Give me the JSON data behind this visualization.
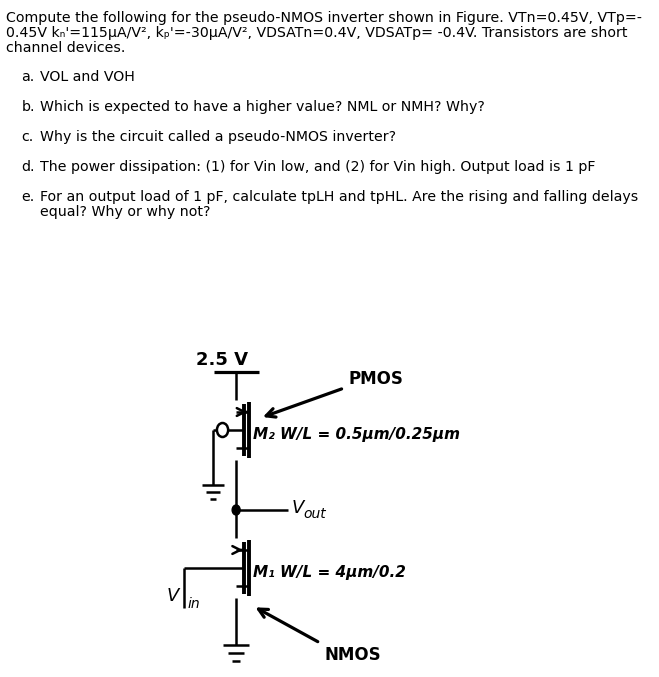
{
  "title_line1": "Compute the following for the pseudo-NMOS inverter shown in Figure. VTn=0.45V, VTp=-",
  "title_line2": "0.45V kₙ'=115μA/V², kₚ'=-30μA/V², VDSATn=0.4V, VDSATp= -0.4V. Transistors are short",
  "title_line3": "channel devices.",
  "item_a_letter": "a.",
  "item_a_text": "VOL and VOH",
  "item_b_letter": "b.",
  "item_b_text": "Which is expected to have a higher value? NML or NMH? Why?",
  "item_c_letter": "c.",
  "item_c_text": "Why is the circuit called a pseudo-NMOS inverter?",
  "item_d_letter": "d.",
  "item_d_text": "The power dissipation: (1) for Vin low, and (2) for Vin high. Output load is 1 pF",
  "item_e_letter": "e.",
  "item_e_text1": "For an output load of 1 pF, calculate tpLH and tpHL. Are the rising and falling delays",
  "item_e_text2": "equal? Why or why not?",
  "vdd_label": "2.5 V",
  "pmos_label": "PMOS",
  "m2_label": "M₂ W/L = 0.5μm/0.25μm",
  "vout_v": "V",
  "vout_sub": "out",
  "m1_label": "M₁ W/L = 4μm/0.2",
  "vin_v": "V",
  "vin_sub": "in",
  "nmos_label": "NMOS",
  "bg_color": "#ffffff",
  "lc": "#000000",
  "lw": 1.8,
  "fs_body": 10.2,
  "fs_circuit": 11.0
}
